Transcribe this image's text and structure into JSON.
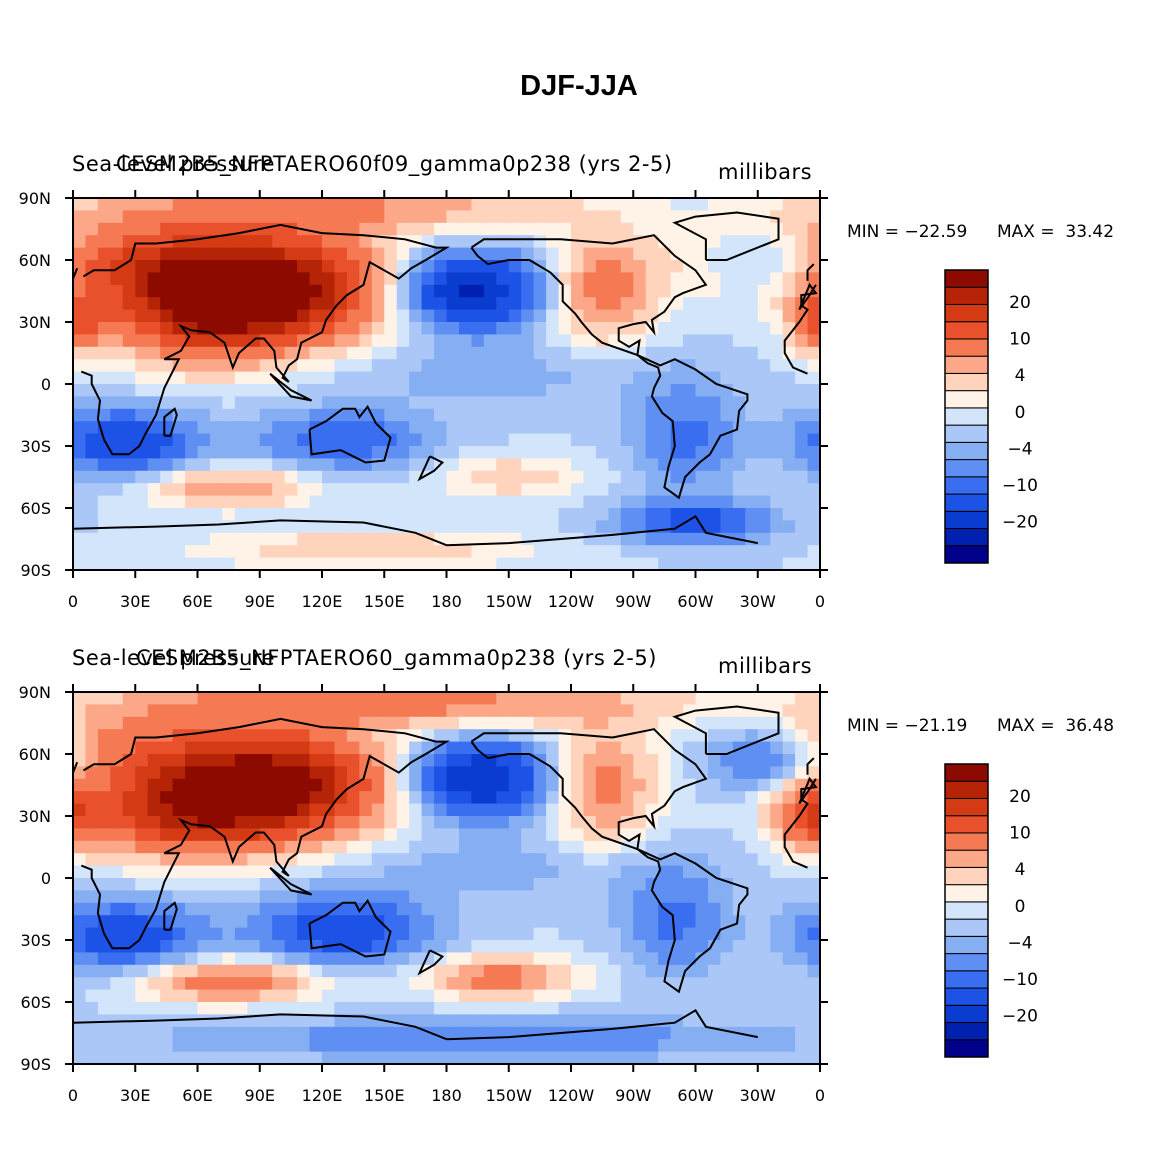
{
  "title": "DJF-JJA",
  "colors": {
    "coastline": "#000000",
    "levels": [
      "#00008b",
      "#0020b0",
      "#0a3ccf",
      "#1d52e6",
      "#3a6ef0",
      "#5f8ff2",
      "#86aef3",
      "#aac7f7",
      "#d3e5fb",
      "#fff2e6",
      "#ffd3bc",
      "#fca888",
      "#f57a54",
      "#e8512c",
      "#d43a14",
      "#b52406",
      "#8c0a00"
    ]
  },
  "chart_data": [
    {
      "type": "heatmap",
      "variable": "Sea-level pressure",
      "case": "CESM2B5_NFPTAERO60f09_gamma0p238 (yrs 2-5)",
      "units": "millibars",
      "min_text": "MIN = −22.59",
      "max_text": "MAX =  33.42",
      "min": -22.59,
      "max": 33.42,
      "xticks": [
        "0",
        "30E",
        "60E",
        "90E",
        "120E",
        "150E",
        "180",
        "150W",
        "120W",
        "90W",
        "60W",
        "30W",
        "0"
      ],
      "yticks": [
        "90N",
        "60N",
        "30N",
        "0",
        "30S",
        "60S",
        "90S"
      ],
      "colorbar_labels": [
        "20",
        "10",
        "4",
        "0",
        "−4",
        "−10",
        "−20"
      ],
      "anomalies": [
        {
          "lon": 95,
          "lat": 45,
          "rx": 55,
          "ry": 25,
          "amp": 32
        },
        {
          "lon": 60,
          "lat": 35,
          "rx": 40,
          "ry": 25,
          "amp": 18
        },
        {
          "lon": 20,
          "lat": 60,
          "rx": 80,
          "ry": 20,
          "amp": 14
        },
        {
          "lon": 120,
          "lat": 85,
          "rx": 120,
          "ry": 12,
          "amp": 10
        },
        {
          "lon": 255,
          "lat": 45,
          "rx": 25,
          "ry": 25,
          "amp": 12
        },
        {
          "lon": 360,
          "lat": 30,
          "rx": 15,
          "ry": 15,
          "amp": 14
        },
        {
          "lon": 190,
          "lat": 45,
          "rx": 35,
          "ry": 18,
          "amp": -22
        },
        {
          "lon": 335,
          "lat": 60,
          "rx": 30,
          "ry": 15,
          "amp": -10
        },
        {
          "lon": 25,
          "lat": -28,
          "rx": 35,
          "ry": 16,
          "amp": -14
        },
        {
          "lon": 130,
          "lat": -27,
          "rx": 40,
          "ry": 14,
          "amp": -10
        },
        {
          "lon": 295,
          "lat": -25,
          "rx": 25,
          "ry": 25,
          "amp": -8
        },
        {
          "lon": 300,
          "lat": -67,
          "rx": 35,
          "ry": 10,
          "amp": -12
        },
        {
          "lon": 75,
          "lat": -50,
          "rx": 40,
          "ry": 10,
          "amp": 10
        },
        {
          "lon": 210,
          "lat": -45,
          "rx": 35,
          "ry": 10,
          "amp": 6
        },
        {
          "lon": 140,
          "lat": -80,
          "rx": 80,
          "ry": 10,
          "amp": 6
        },
        {
          "lon": 200,
          "lat": 5,
          "rx": 90,
          "ry": 15,
          "amp": -3
        }
      ]
    },
    {
      "type": "heatmap",
      "variable": "Sea-level pressure",
      "case": "CESM2B5_NFPTAERO60_gamma0p238 (yrs 2-5)",
      "units": "millibars",
      "min_text": "MIN = −21.19",
      "max_text": "MAX =  36.48",
      "min": -21.19,
      "max": 36.48,
      "xticks": [
        "0",
        "30E",
        "60E",
        "90E",
        "120E",
        "150E",
        "180",
        "150W",
        "120W",
        "90W",
        "60W",
        "30W",
        "0"
      ],
      "yticks": [
        "90N",
        "60N",
        "30N",
        "0",
        "30S",
        "60S",
        "90S"
      ],
      "colorbar_labels": [
        "20",
        "10",
        "4",
        "0",
        "−4",
        "−10",
        "−20"
      ],
      "anomalies": [
        {
          "lon": 95,
          "lat": 45,
          "rx": 55,
          "ry": 25,
          "amp": 34
        },
        {
          "lon": 50,
          "lat": 30,
          "rx": 45,
          "ry": 20,
          "amp": 18
        },
        {
          "lon": 20,
          "lat": 62,
          "rx": 60,
          "ry": 18,
          "amp": 10
        },
        {
          "lon": 150,
          "lat": 85,
          "rx": 140,
          "ry": 12,
          "amp": 12
        },
        {
          "lon": 255,
          "lat": 45,
          "rx": 25,
          "ry": 28,
          "amp": 12
        },
        {
          "lon": 355,
          "lat": 30,
          "rx": 18,
          "ry": 15,
          "amp": 16
        },
        {
          "lon": 195,
          "lat": 48,
          "rx": 35,
          "ry": 18,
          "amp": -21
        },
        {
          "lon": 335,
          "lat": 58,
          "rx": 30,
          "ry": 15,
          "amp": -12
        },
        {
          "lon": 25,
          "lat": -28,
          "rx": 35,
          "ry": 16,
          "amp": -14
        },
        {
          "lon": 130,
          "lat": -25,
          "rx": 40,
          "ry": 16,
          "amp": -14
        },
        {
          "lon": 290,
          "lat": -20,
          "rx": 25,
          "ry": 25,
          "amp": -8
        },
        {
          "lon": 200,
          "lat": -78,
          "rx": 150,
          "ry": 10,
          "amp": -6
        },
        {
          "lon": 75,
          "lat": -50,
          "rx": 40,
          "ry": 10,
          "amp": 14
        },
        {
          "lon": 205,
          "lat": -48,
          "rx": 35,
          "ry": 10,
          "amp": 12
        },
        {
          "lon": 195,
          "lat": 5,
          "rx": 90,
          "ry": 15,
          "amp": -3
        }
      ]
    }
  ]
}
